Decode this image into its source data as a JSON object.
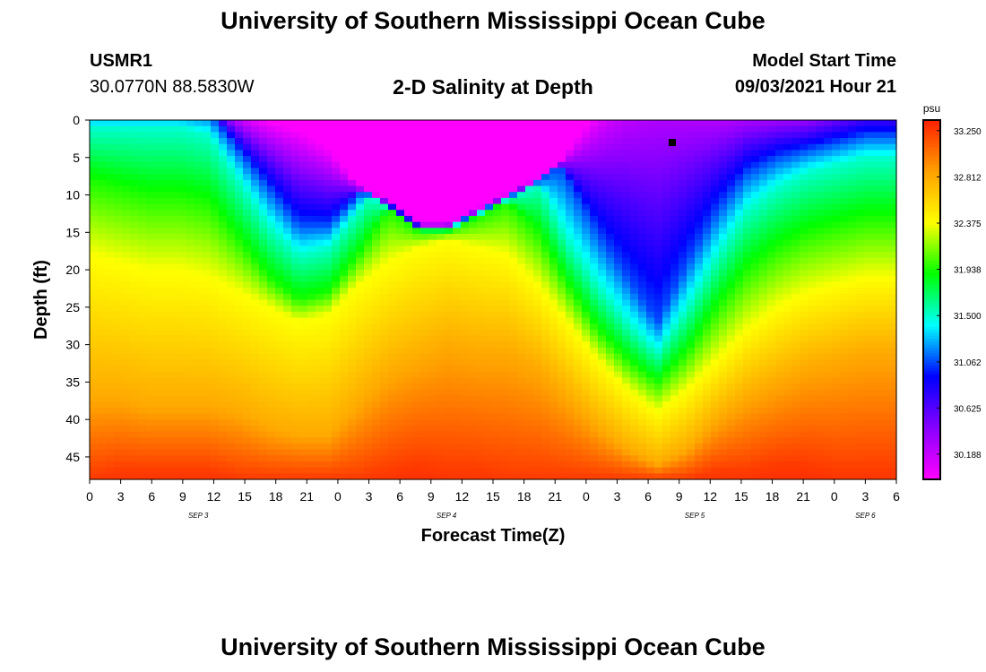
{
  "header": {
    "title": "University of Southern Mississippi Ocean Cube",
    "station_id": "USMR1",
    "station_coords": "30.0770N  88.5830W",
    "plot_title": "2-D Salinity at Depth",
    "model_start_label": "Model Start Time",
    "model_start_time": "09/03/2021 Hour 21"
  },
  "footer": {
    "title": "University of Southern Mississippi Ocean Cube"
  },
  "chart_data": {
    "type": "heatmap",
    "title": "2-D Salinity at Depth",
    "xlabel": "Forecast Time(Z)",
    "ylabel": "Depth (ft)",
    "y_range": [
      0,
      48
    ],
    "y_inverted": true,
    "y_ticks": [
      0,
      5,
      10,
      15,
      20,
      25,
      30,
      35,
      40,
      45
    ],
    "x_range_hours_from_start": [
      0,
      81
    ],
    "x_tick_labels": [
      "0",
      "3",
      "6",
      "9",
      "12",
      "15",
      "18",
      "21",
      "0",
      "3",
      "6",
      "9",
      "12",
      "15",
      "18",
      "21",
      "0",
      "3",
      "6",
      "9",
      "12",
      "15",
      "18",
      "21",
      "0",
      "3",
      "6"
    ],
    "date_labels": [
      {
        "label": "SEP 3",
        "at_tick": 3.5
      },
      {
        "label": "SEP 4",
        "at_tick": 11.5
      },
      {
        "label": "SEP 5",
        "at_tick": 19.5
      },
      {
        "label": "SEP 6",
        "at_tick": 25
      }
    ],
    "colorbar": {
      "unit": "psu",
      "min": 29.95,
      "max": 33.35,
      "tick_values": [
        33.25,
        32.812,
        32.375,
        31.938,
        31.5,
        31.062,
        30.625,
        30.188
      ],
      "tick_labels": [
        "33.250",
        "32.812",
        "32.375",
        "31.938",
        "31.500",
        "31.062",
        "30.625",
        "30.188"
      ],
      "colors": [
        "#ff00ff",
        "#8800ff",
        "#0000ff",
        "#00ffff",
        "#00ff00",
        "#ffff00",
        "#ffa000",
        "#ff2000"
      ]
    },
    "isohaline_depths": {
      "time_ticks": [
        0,
        1,
        2,
        3,
        4,
        5,
        6,
        7,
        8,
        9,
        10,
        11,
        12,
        13,
        14,
        15,
        16,
        17,
        18,
        19,
        20,
        21,
        22,
        23,
        24,
        25,
        26,
        27
      ],
      "salinity_levels": [
        30.188,
        31.062,
        31.5,
        31.938,
        32.375,
        32.812,
        33.25
      ],
      "depths": [
        [
          -3,
          -3,
          -3,
          -3,
          -2,
          0,
          2,
          4,
          6,
          9,
          11,
          14,
          14,
          12,
          10,
          8,
          5,
          2,
          -1,
          -3,
          -2,
          -1,
          -1,
          -1,
          -1,
          -2,
          -3,
          -3
        ],
        [
          -1,
          -1,
          -1,
          -1,
          -1,
          4,
          9,
          14,
          14,
          10,
          6,
          3,
          0,
          -1,
          -1,
          2,
          8,
          15,
          21,
          27,
          19,
          12,
          7,
          5,
          4,
          3,
          2,
          2
        ],
        [
          1,
          1,
          1,
          1,
          2,
          8,
          14,
          18,
          17,
          12,
          7,
          4,
          2,
          2,
          3,
          8,
          16,
          22,
          27,
          31,
          25,
          18,
          12,
          9,
          7,
          6,
          5,
          5
        ],
        [
          8,
          9,
          10,
          10,
          11,
          16,
          21,
          24,
          23,
          18,
          12,
          10,
          9,
          10,
          11,
          15,
          22,
          28,
          32,
          35,
          31,
          25,
          20,
          17,
          15,
          14,
          13,
          13
        ],
        [
          18,
          19,
          20,
          20,
          21,
          23,
          25,
          27,
          26,
          22,
          19,
          17,
          16,
          17,
          18,
          22,
          27,
          32,
          36,
          39,
          36,
          32,
          28,
          25,
          23,
          22,
          21,
          21
        ],
        [
          37,
          37,
          38,
          38,
          38,
          39,
          41,
          42,
          42,
          38,
          34,
          32,
          30,
          31,
          31,
          33,
          37,
          41,
          44,
          46,
          44,
          40,
          37,
          35,
          33,
          32,
          31,
          31
        ],
        [
          48,
          47,
          47,
          47,
          47,
          48,
          48,
          48,
          48,
          48,
          47,
          46,
          47,
          47,
          48,
          48,
          48,
          48,
          48,
          48,
          48,
          47,
          47,
          46,
          46,
          47,
          47,
          47
        ]
      ]
    },
    "marker": {
      "time_hours": 58.5,
      "depth_ft": 3
    }
  }
}
